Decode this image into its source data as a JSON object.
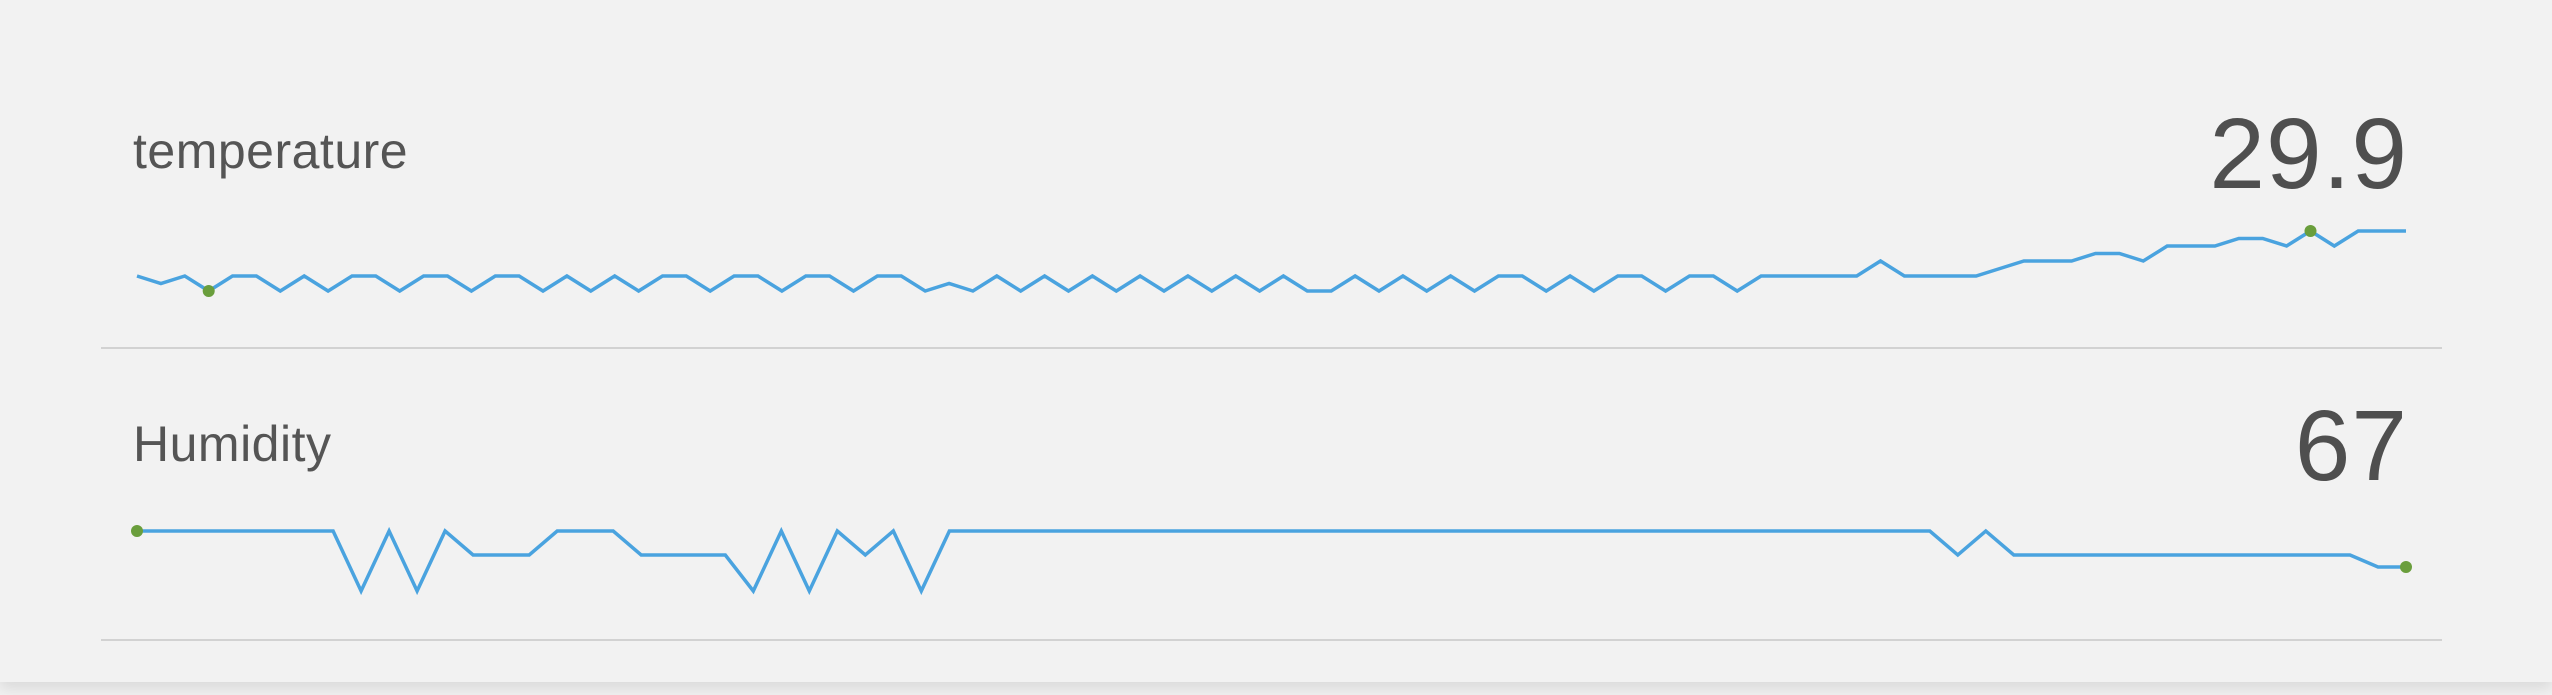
{
  "colors": {
    "line": "#4aa3df",
    "marker": "#6a9e3c",
    "text": "#555555",
    "divider": "#d2d2d2"
  },
  "sensors": [
    {
      "id": "temperature",
      "name": "temperature",
      "value": "29.9",
      "chart_data": {
        "type": "line",
        "y": [
          0,
          -1,
          0,
          -2,
          0,
          0,
          -2,
          0,
          -2,
          0,
          0,
          -2,
          0,
          0,
          -2,
          0,
          0,
          -2,
          0,
          -2,
          0,
          -2,
          0,
          0,
          -2,
          0,
          0,
          -2,
          0,
          0,
          -2,
          0,
          0,
          -2,
          -1,
          -2,
          0,
          -2,
          0,
          -2,
          0,
          -2,
          0,
          -2,
          0,
          -2,
          0,
          -2,
          0,
          -2,
          -2,
          0,
          -2,
          0,
          -2,
          0,
          -2,
          0,
          0,
          -2,
          0,
          -2,
          0,
          0,
          -2,
          0,
          0,
          -2,
          0,
          0,
          0,
          0,
          0,
          2,
          0,
          0,
          0,
          0,
          1,
          2,
          2,
          2,
          3,
          3,
          2,
          4,
          4,
          4,
          5,
          5,
          4,
          6,
          4,
          6,
          6,
          6
        ],
        "ylim": [
          -2,
          6
        ],
        "markers": [
          "min",
          "max"
        ]
      }
    },
    {
      "id": "humidity",
      "name": "Humidity",
      "value": "67",
      "chart_data": {
        "type": "line",
        "y": [
          70,
          70,
          70,
          70,
          70,
          70,
          70,
          70,
          65,
          70,
          65,
          70,
          68,
          68,
          68,
          70,
          70,
          70,
          68,
          68,
          68,
          68,
          65,
          70,
          65,
          70,
          68,
          70,
          65,
          70,
          70,
          70,
          70,
          70,
          70,
          70,
          70,
          70,
          70,
          70,
          70,
          70,
          70,
          70,
          70,
          70,
          70,
          70,
          70,
          70,
          70,
          70,
          70,
          70,
          70,
          70,
          70,
          70,
          70,
          70,
          70,
          70,
          70,
          70,
          70,
          68,
          70,
          68,
          68,
          68,
          68,
          68,
          68,
          68,
          68,
          68,
          68,
          68,
          68,
          68,
          67,
          67
        ],
        "ylim": [
          66,
          71
        ],
        "markers": [
          "first",
          "last"
        ]
      }
    }
  ]
}
